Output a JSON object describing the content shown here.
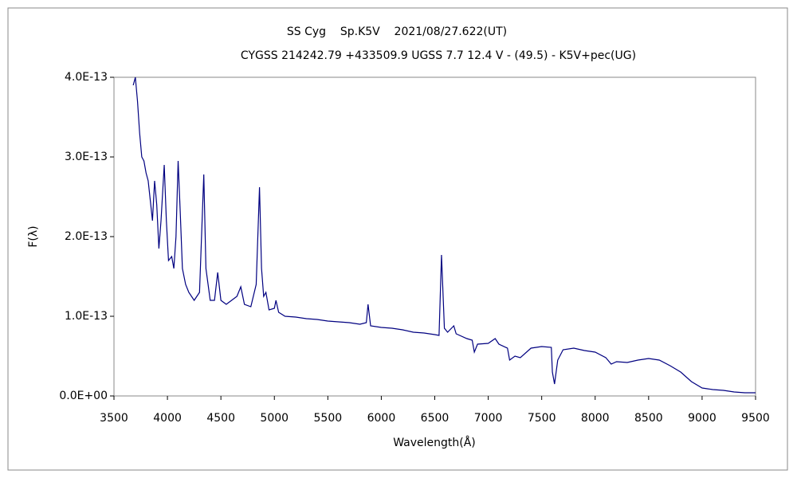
{
  "chart_data": {
    "type": "line",
    "title": "SS Cyg    Sp.K5V    2021/08/27.622(UT)",
    "subtitle": "CYGSS 214242.79 +433509.9 UGSS 7.7 12.4 V - (49.5) - K5V+pec(UG)",
    "x_label": "Wavelength(Å)",
    "y_label": "F(λ)",
    "color": "#000080",
    "x": [
      3680,
      3700,
      3720,
      3740,
      3760,
      3780,
      3800,
      3820,
      3840,
      3860,
      3880,
      3900,
      3920,
      3940,
      3970,
      3990,
      4010,
      4040,
      4060,
      4080,
      4100,
      4120,
      4140,
      4170,
      4200,
      4250,
      4300,
      4340,
      4360,
      4400,
      4440,
      4470,
      4500,
      4550,
      4600,
      4650,
      4686,
      4720,
      4780,
      4830,
      4861,
      4880,
      4900,
      4921,
      4950,
      5000,
      5015,
      5040,
      5100,
      5200,
      5300,
      5400,
      5500,
      5600,
      5700,
      5800,
      5860,
      5876,
      5900,
      6000,
      6100,
      6200,
      6300,
      6400,
      6500,
      6540,
      6563,
      6590,
      6620,
      6678,
      6700,
      6800,
      6850,
      6870,
      6900,
      7000,
      7065,
      7100,
      7180,
      7200,
      7250,
      7300,
      7400,
      7500,
      7590,
      7600,
      7620,
      7650,
      7700,
      7800,
      7900,
      8000,
      8100,
      8150,
      8200,
      8300,
      8400,
      8500,
      8600,
      8700,
      8800,
      8900,
      9000,
      9100,
      9200,
      9300,
      9400,
      9500
    ],
    "values": [
      3.9e-13,
      4e-13,
      3.7e-13,
      3.3e-13,
      3e-13,
      2.95e-13,
      2.8e-13,
      2.7e-13,
      2.45e-13,
      2.2e-13,
      2.7e-13,
      2.4e-13,
      1.85e-13,
      2.2e-13,
      2.9e-13,
      2.2e-13,
      1.7e-13,
      1.75e-13,
      1.6e-13,
      2e-13,
      2.95e-13,
      2.3e-13,
      1.6e-13,
      1.4e-13,
      1.3e-13,
      1.2e-13,
      1.3e-13,
      2.78e-13,
      1.6e-13,
      1.2e-13,
      1.2e-13,
      1.55e-13,
      1.2e-13,
      1.15e-13,
      1.2e-13,
      1.25e-13,
      1.37e-13,
      1.15e-13,
      1.12e-13,
      1.4e-13,
      2.62e-13,
      1.6e-13,
      1.25e-13,
      1.3e-13,
      1.08e-13,
      1.1e-13,
      1.2e-13,
      1.05e-13,
      1e-13,
      9.9e-14,
      9.7e-14,
      9.6e-14,
      9.4e-14,
      9.3e-14,
      9.2e-14,
      9e-14,
      9.2e-14,
      1.15e-13,
      8.8e-14,
      8.6e-14,
      8.5e-14,
      8.3e-14,
      8e-14,
      7.9e-14,
      7.7e-14,
      7.6e-14,
      1.77e-13,
      8.5e-14,
      8e-14,
      8.8e-14,
      7.8e-14,
      7.2e-14,
      7e-14,
      5.5e-14,
      6.5e-14,
      6.6e-14,
      7.2e-14,
      6.5e-14,
      6e-14,
      4.5e-14,
      5e-14,
      4.8e-14,
      6e-14,
      6.2e-14,
      6.1e-14,
      3e-14,
      1.5e-14,
      4.5e-14,
      5.8e-14,
      6e-14,
      5.7e-14,
      5.5e-14,
      4.8e-14,
      4e-14,
      4.3e-14,
      4.2e-14,
      4.5e-14,
      4.7e-14,
      4.5e-14,
      3.8e-14,
      3e-14,
      1.8e-14,
      1e-14,
      8e-15,
      7e-15,
      5e-15,
      4e-15,
      4e-15
    ],
    "xlim": [
      3500,
      9500
    ],
    "xticks": [
      3500,
      4000,
      4500,
      5000,
      5500,
      6000,
      6500,
      7000,
      7500,
      8000,
      8500,
      9000,
      9500
    ],
    "ylim": [
      0,
      4e-13
    ],
    "yticks": [
      {
        "value": 0,
        "label": "0.0E+00"
      },
      {
        "value": 1e-13,
        "label": "1.0E-13"
      },
      {
        "value": 2e-13,
        "label": "2.0E-13"
      },
      {
        "value": 3e-13,
        "label": "3.0E-13"
      },
      {
        "value": 4e-13,
        "label": "4.0E-13"
      }
    ],
    "grid": false
  }
}
